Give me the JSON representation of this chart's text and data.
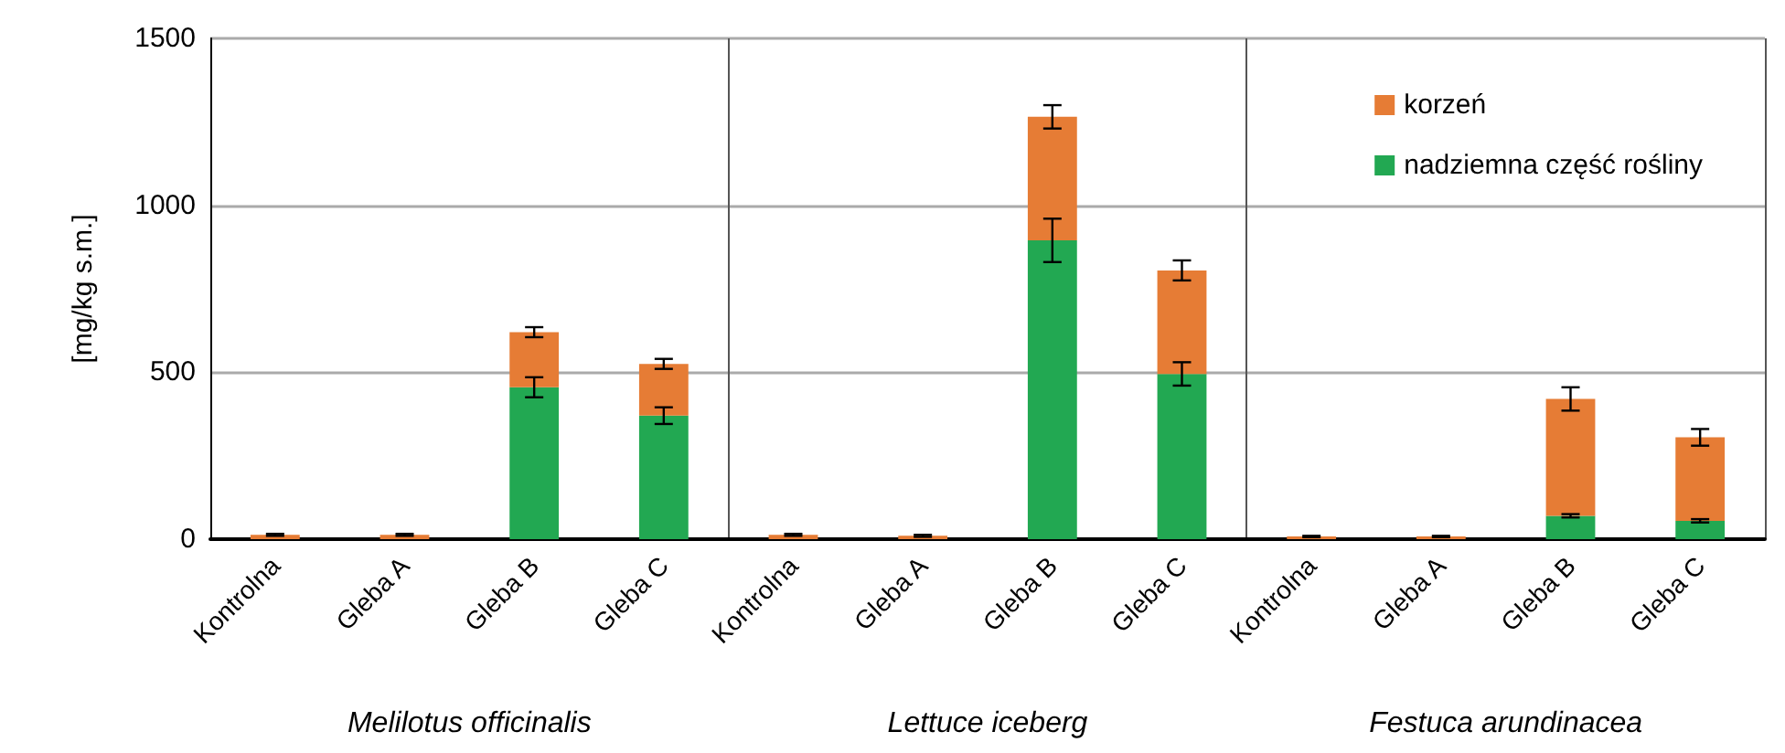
{
  "chart_data": {
    "type": "bar",
    "stacked": true,
    "ylabel": "[mg/kg s.m.]",
    "categories": [
      "Kontrolna",
      "Gleba A",
      "Gleba B",
      "Gleba C",
      "Kontrolna",
      "Gleba A",
      "Gleba B",
      "Gleba C",
      "Kontrolna",
      "Gleba A",
      "Gleba B",
      "Gleba C"
    ],
    "series": [
      {
        "name": "nadziemna część rośliny",
        "color": "#22a852",
        "values": [
          null,
          null,
          455,
          370,
          null,
          null,
          895,
          495,
          null,
          null,
          70,
          55
        ],
        "errors": [
          null,
          null,
          30,
          25,
          null,
          null,
          65,
          35,
          null,
          null,
          5,
          5
        ]
      },
      {
        "name": "korzeń",
        "color": "#e67c35",
        "values": [
          13,
          13,
          165,
          155,
          13,
          10,
          370,
          310,
          8,
          8,
          350,
          250
        ],
        "errors": [
          3,
          3,
          15,
          15,
          3,
          3,
          35,
          30,
          2,
          2,
          35,
          25
        ]
      }
    ],
    "ylim": [
      0,
      1500
    ],
    "yticks": [
      0,
      500,
      1000,
      1500
    ],
    "grid": "y",
    "legend": "top right",
    "annotations": [
      "Melilotus officinalis",
      "Lettuce iceberg",
      "Festuca arundinacea"
    ]
  }
}
